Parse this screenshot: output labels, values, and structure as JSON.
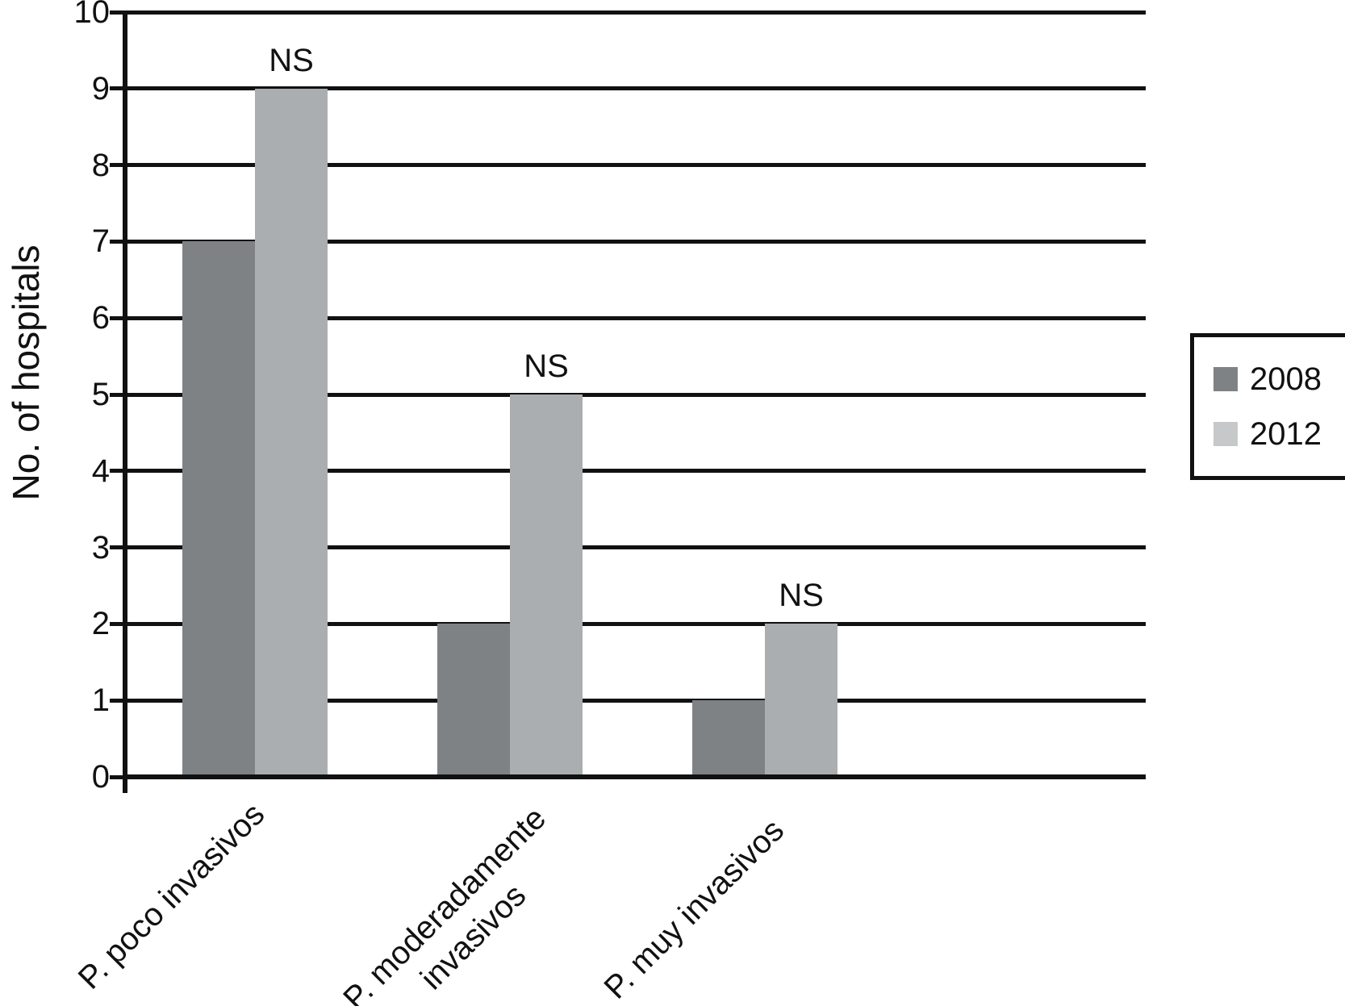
{
  "chart_data": {
    "type": "bar",
    "title": "",
    "xlabel": "",
    "ylabel": "No. of hospitals",
    "ylim": [
      0,
      10
    ],
    "yticks": [
      0,
      1,
      2,
      3,
      4,
      5,
      6,
      7,
      8,
      9,
      10
    ],
    "grid": true,
    "categories": [
      "P. poco invasivos",
      "P. moderadamente\ninvasivos",
      "P. muy invasivos"
    ],
    "series": [
      {
        "name": "2008",
        "color": "#7f8285",
        "values": [
          7,
          2,
          1
        ]
      },
      {
        "name": "2012",
        "color": "#abaeb0",
        "values": [
          9,
          5,
          2
        ]
      }
    ],
    "annotations": [
      {
        "text": "NS",
        "category_index": 0,
        "series": "2012",
        "value": 9
      },
      {
        "text": "NS",
        "category_index": 1,
        "series": "2012",
        "value": 5
      },
      {
        "text": "NS",
        "category_index": 2,
        "series": "2012",
        "value": 2
      }
    ],
    "legend": {
      "position": "right",
      "entries": [
        {
          "label": "2008",
          "swatch_color": "#7f8285"
        },
        {
          "label": "2012",
          "swatch_color": "#c6c8c9"
        }
      ]
    },
    "axis_color": "#111111"
  }
}
